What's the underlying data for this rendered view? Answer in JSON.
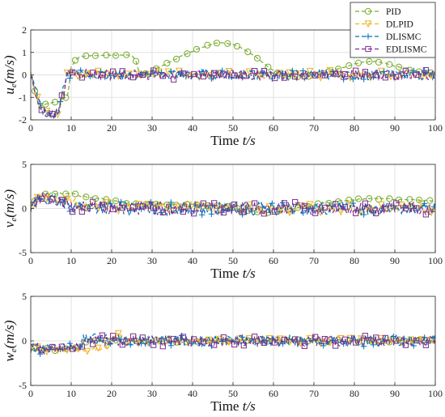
{
  "chart_data": [
    {
      "type": "line",
      "ylabel_var": "u",
      "ylabel_sub": "e",
      "ylabel_unit": "(m/s)",
      "xlabel_prefix": "Time ",
      "xlabel_var": "t",
      "xlabel_unit": "/s",
      "xlim": [
        0,
        100
      ],
      "ylim": [
        -2,
        2
      ],
      "xticks": [
        "0",
        "10",
        "20",
        "30",
        "40",
        "50",
        "60",
        "70",
        "80",
        "90",
        "100"
      ],
      "yticks": [
        "2",
        "1",
        "0",
        "-1",
        "-2"
      ],
      "grid": true,
      "legend": {
        "position": "top-right",
        "items": [
          {
            "name": "PID",
            "color": "#77ac30",
            "marker": "circle"
          },
          {
            "name": "DLPID",
            "color": "#edb120",
            "marker": "triangle-down"
          },
          {
            "name": "DLISMC",
            "color": "#0072bd",
            "marker": "plus"
          },
          {
            "name": "EDLISMC",
            "color": "#7e2f8e",
            "marker": "square"
          }
        ]
      },
      "series": [
        {
          "name": "PID",
          "color": "#77ac30",
          "marker": "circle",
          "x": [
            0,
            2,
            4,
            6,
            7,
            8,
            9,
            9.5,
            10,
            11,
            12,
            14,
            16,
            18,
            20,
            22,
            24,
            25,
            26,
            26.5,
            27,
            28,
            30,
            32,
            34,
            36,
            38,
            40,
            42,
            44,
            46,
            47,
            48,
            50,
            52,
            54,
            56,
            58,
            60,
            62,
            64,
            66,
            68,
            70,
            72,
            74,
            76,
            78,
            80,
            82,
            84,
            86,
            88,
            90,
            92,
            94,
            96,
            98,
            100
          ],
          "y": [
            0,
            -1.4,
            -1.3,
            -1.2,
            -1.2,
            -1.05,
            -1.0,
            -0.5,
            0.35,
            0.65,
            0.78,
            0.85,
            0.85,
            0.88,
            0.88,
            0.88,
            0.88,
            0.86,
            0.6,
            0.3,
            0.02,
            0.05,
            0.2,
            0.35,
            0.55,
            0.72,
            0.9,
            1.05,
            1.2,
            1.33,
            1.42,
            1.43,
            1.42,
            1.35,
            1.2,
            1.0,
            0.75,
            0.45,
            0.2,
            0.02,
            -0.08,
            -0.1,
            -0.1,
            -0.05,
            0.05,
            0.15,
            0.28,
            0.38,
            0.48,
            0.55,
            0.6,
            0.58,
            0.5,
            0.4,
            0.3,
            0.22,
            0.15,
            0.1,
            0.1
          ],
          "noise": 0.02,
          "marker_every": 1
        },
        {
          "name": "DLPID",
          "color": "#edb120",
          "marker": "triangle-down",
          "x": [
            0,
            1,
            2,
            3,
            4,
            5,
            6,
            7,
            8,
            9,
            10,
            12,
            14,
            16,
            18,
            20,
            22,
            24,
            26,
            28,
            30,
            40,
            50,
            60,
            70,
            80,
            90,
            100
          ],
          "y": [
            0,
            -0.8,
            -1.2,
            -1.5,
            -1.7,
            -1.8,
            -1.75,
            -1.6,
            -0.8,
            0.0,
            0.1,
            0.05,
            0.0,
            0.05,
            0.0,
            0.05,
            0.0,
            0.05,
            0.0,
            0.0,
            0.05,
            0.0,
            0.05,
            0.0,
            0.0,
            0.05,
            0.0,
            0.0
          ],
          "noise": 0.18,
          "marker_every": 6
        },
        {
          "name": "DLISMC",
          "color": "#0072bd",
          "marker": "plus",
          "x": [
            0,
            1,
            2,
            3,
            4,
            5,
            6,
            7,
            8,
            9,
            10,
            20,
            30,
            40,
            50,
            60,
            70,
            80,
            90,
            100
          ],
          "y": [
            0,
            -0.5,
            -1.3,
            -1.6,
            -1.75,
            -1.8,
            -1.75,
            -1.5,
            -0.7,
            0.0,
            0.05,
            0.0,
            0.0,
            0.0,
            0.0,
            0.0,
            0.0,
            0.0,
            0.0,
            0.0
          ],
          "noise": 0.22,
          "marker_every": 6
        },
        {
          "name": "EDLISMC",
          "color": "#7e2f8e",
          "marker": "square",
          "x": [
            0,
            1,
            2,
            3,
            4,
            5,
            6,
            7,
            8,
            9,
            10,
            20,
            30,
            40,
            50,
            60,
            70,
            80,
            90,
            100
          ],
          "y": [
            0,
            -0.6,
            -1.4,
            -1.65,
            -1.78,
            -1.82,
            -1.78,
            -1.6,
            -0.8,
            0.0,
            0.05,
            0.0,
            0.0,
            0.0,
            0.0,
            0.0,
            0.0,
            0.0,
            0.0,
            0.0
          ],
          "noise": 0.22,
          "marker_every": 6
        }
      ]
    },
    {
      "type": "line",
      "ylabel_var": "v",
      "ylabel_sub": "e",
      "ylabel_unit": "(m/s)",
      "xlabel_prefix": "Time ",
      "xlabel_var": "t",
      "xlabel_unit": "/s",
      "xlim": [
        0,
        100
      ],
      "ylim": [
        -5,
        5
      ],
      "xticks": [
        "0",
        "10",
        "20",
        "30",
        "40",
        "50",
        "60",
        "70",
        "80",
        "90",
        "100"
      ],
      "yticks": [
        "5",
        "0",
        "-5"
      ],
      "grid": true,
      "series": [
        {
          "name": "PID",
          "color": "#77ac30",
          "marker": "circle",
          "x": [
            0,
            1,
            2,
            3,
            4,
            6,
            8,
            10,
            11,
            12,
            14,
            16,
            18,
            20,
            22,
            24,
            26,
            28,
            30,
            34,
            38,
            42,
            46,
            50,
            52,
            54,
            56,
            58,
            60,
            62,
            64,
            66,
            68,
            70,
            72,
            74,
            76,
            78,
            80,
            82,
            84,
            86,
            88,
            90,
            92,
            94,
            96,
            98,
            100
          ],
          "y": [
            0,
            0.8,
            1.6,
            1.7,
            1.65,
            1.7,
            1.7,
            1.75,
            1.7,
            1.4,
            1.3,
            1.2,
            1.1,
            0.9,
            0.75,
            0.6,
            0.5,
            0.45,
            0.45,
            0.45,
            0.45,
            0.4,
            0.3,
            0.1,
            -0.15,
            -0.35,
            -0.45,
            -0.45,
            -0.4,
            -0.3,
            -0.15,
            0.05,
            0.2,
            0.4,
            0.55,
            0.7,
            0.85,
            0.95,
            1.0,
            1.05,
            1.1,
            1.1,
            1.1,
            1.05,
            1.0,
            1.0,
            0.95,
            0.9,
            0.85
          ],
          "noise": 0.03,
          "marker_every": 1
        },
        {
          "name": "DLPID",
          "color": "#edb120",
          "marker": "triangle-down",
          "x": [
            0,
            1,
            2,
            3,
            4,
            6,
            8,
            10,
            11,
            12,
            14,
            20,
            30,
            40,
            50,
            60,
            70,
            80,
            90,
            100
          ],
          "y": [
            0,
            0.5,
            1.1,
            1.3,
            1.2,
            1.1,
            1.1,
            1.0,
            0.7,
            0.3,
            0.25,
            0.2,
            0.15,
            0.1,
            0.05,
            0.0,
            0.0,
            0.0,
            0.0,
            0.0
          ],
          "noise": 0.2,
          "marker_every": 6
        },
        {
          "name": "DLISMC",
          "color": "#0072bd",
          "marker": "plus",
          "x": [
            0,
            1,
            2,
            3,
            4,
            6,
            8,
            10,
            12,
            20,
            30,
            40,
            50,
            60,
            70,
            80,
            90,
            100
          ],
          "y": [
            0,
            0.5,
            1.2,
            1.1,
            1.0,
            0.8,
            0.6,
            0.4,
            0.2,
            0.1,
            0.0,
            0.0,
            0.0,
            0.0,
            0.0,
            0.0,
            0.0,
            0.0
          ],
          "noise": 0.3,
          "marker_every": 6
        },
        {
          "name": "EDLISMC",
          "color": "#7e2f8e",
          "marker": "square",
          "x": [
            0,
            1,
            2,
            3,
            4,
            6,
            8,
            10,
            12,
            20,
            30,
            40,
            50,
            60,
            70,
            80,
            90,
            100
          ],
          "y": [
            0,
            0.6,
            1.3,
            1.2,
            1.0,
            0.8,
            0.6,
            0.4,
            0.2,
            0.1,
            0.0,
            0.0,
            0.0,
            0.0,
            0.0,
            0.0,
            0.0,
            0.0
          ],
          "noise": 0.3,
          "marker_every": 6
        }
      ]
    },
    {
      "type": "line",
      "ylabel_var": "w",
      "ylabel_sub": "e",
      "ylabel_unit": "(m/s)",
      "xlabel_prefix": "Time ",
      "xlabel_var": "t",
      "xlabel_unit": "/s",
      "xlim": [
        0,
        100
      ],
      "ylim": [
        -5,
        5
      ],
      "xticks": [
        "0",
        "10",
        "20",
        "30",
        "40",
        "50",
        "60",
        "70",
        "80",
        "90",
        "100"
      ],
      "yticks": [
        "5",
        "0",
        "-5"
      ],
      "grid": true,
      "series": [
        {
          "name": "PID",
          "color": "#77ac30",
          "marker": "circle",
          "x": [
            0,
            2,
            4,
            6,
            8,
            10,
            12,
            13,
            14,
            16,
            18,
            20,
            22,
            24,
            26,
            30,
            40,
            50,
            60,
            70,
            80,
            90,
            100
          ],
          "y": [
            -0.9,
            -0.95,
            -0.95,
            -0.95,
            -0.9,
            -0.9,
            -0.85,
            -0.2,
            0.1,
            0.1,
            0.1,
            0.05,
            0.0,
            -0.05,
            -0.1,
            -0.05,
            0.0,
            0.0,
            0.0,
            0.0,
            0.0,
            0.0,
            0.0
          ],
          "noise": 0.06,
          "marker_every": 1
        },
        {
          "name": "DLPID",
          "color": "#edb120",
          "marker": "triangle-down",
          "x": [
            0,
            5,
            10,
            12,
            13,
            14,
            16,
            18,
            19,
            20,
            21,
            22,
            23,
            24,
            26,
            30,
            40,
            50,
            60,
            70,
            80,
            90,
            100
          ],
          "y": [
            -0.95,
            -0.95,
            -0.9,
            -0.9,
            -0.9,
            -0.9,
            -0.9,
            -0.85,
            -0.5,
            0.2,
            0.8,
            0.6,
            0.2,
            0.0,
            0.0,
            0.0,
            0.0,
            0.0,
            0.0,
            0.0,
            0.0,
            0.0,
            0.0
          ],
          "noise": 0.12,
          "marker_every": 6
        },
        {
          "name": "DLISMC",
          "color": "#0072bd",
          "marker": "plus",
          "x": [
            0,
            5,
            10,
            12,
            13,
            14,
            16,
            20,
            30,
            40,
            50,
            60,
            70,
            80,
            90,
            100
          ],
          "y": [
            -0.9,
            -0.9,
            -0.8,
            -0.7,
            0.2,
            0.3,
            0.2,
            0.1,
            0.0,
            0.0,
            0.0,
            0.0,
            0.0,
            0.0,
            0.0,
            0.0
          ],
          "noise": 0.25,
          "marker_every": 6
        },
        {
          "name": "EDLISMC",
          "color": "#7e2f8e",
          "marker": "square",
          "x": [
            0,
            5,
            10,
            12,
            13,
            14,
            16,
            20,
            30,
            40,
            50,
            60,
            70,
            80,
            90,
            100
          ],
          "y": [
            -0.85,
            -0.85,
            -0.75,
            -0.7,
            0.1,
            0.2,
            0.1,
            0.05,
            0.0,
            0.0,
            0.0,
            0.0,
            0.0,
            0.0,
            0.0,
            0.0
          ],
          "noise": 0.25,
          "marker_every": 6
        }
      ]
    }
  ]
}
